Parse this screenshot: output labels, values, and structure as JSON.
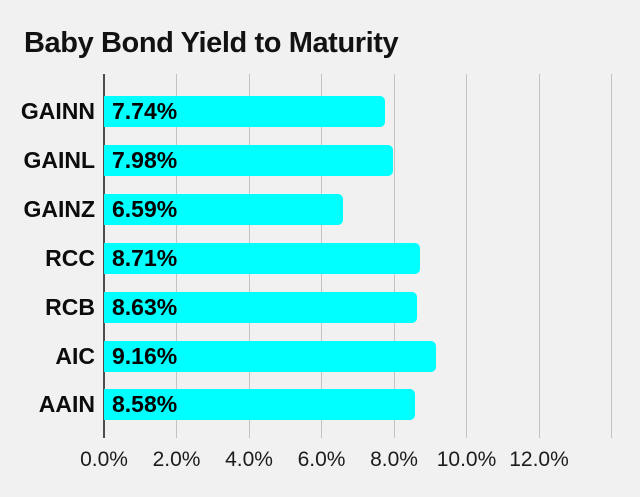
{
  "chart_data": {
    "type": "bar",
    "orientation": "horizontal",
    "title": "Baby Bond Yield to Maturity",
    "categories": [
      "GAINN",
      "GAINL",
      "GAINZ",
      "RCC",
      "RCB",
      "AIC",
      "AAIN"
    ],
    "values": [
      7.74,
      7.98,
      6.59,
      8.71,
      8.63,
      9.16,
      8.58
    ],
    "value_labels": [
      "7.74%",
      "7.98%",
      "6.59%",
      "8.71%",
      "8.63%",
      "9.16%",
      "8.58%"
    ],
    "xlabel": "",
    "ylabel": "",
    "xlim": [
      0,
      14.2
    ],
    "x_ticks": [
      0,
      2,
      4,
      6,
      8,
      10,
      12,
      14
    ],
    "x_tick_labels": [
      "0.0%",
      "2.0%",
      "4.0%",
      "6.0%",
      "8.0%",
      "10.0%",
      "12.0%",
      ""
    ],
    "grid": true,
    "legend": false,
    "colors": {
      "background": "#f1f1f1",
      "bar": "#00ffff",
      "gridline": "#c3c3c3",
      "axis": "#4d4d4d",
      "text": "#121212"
    }
  }
}
